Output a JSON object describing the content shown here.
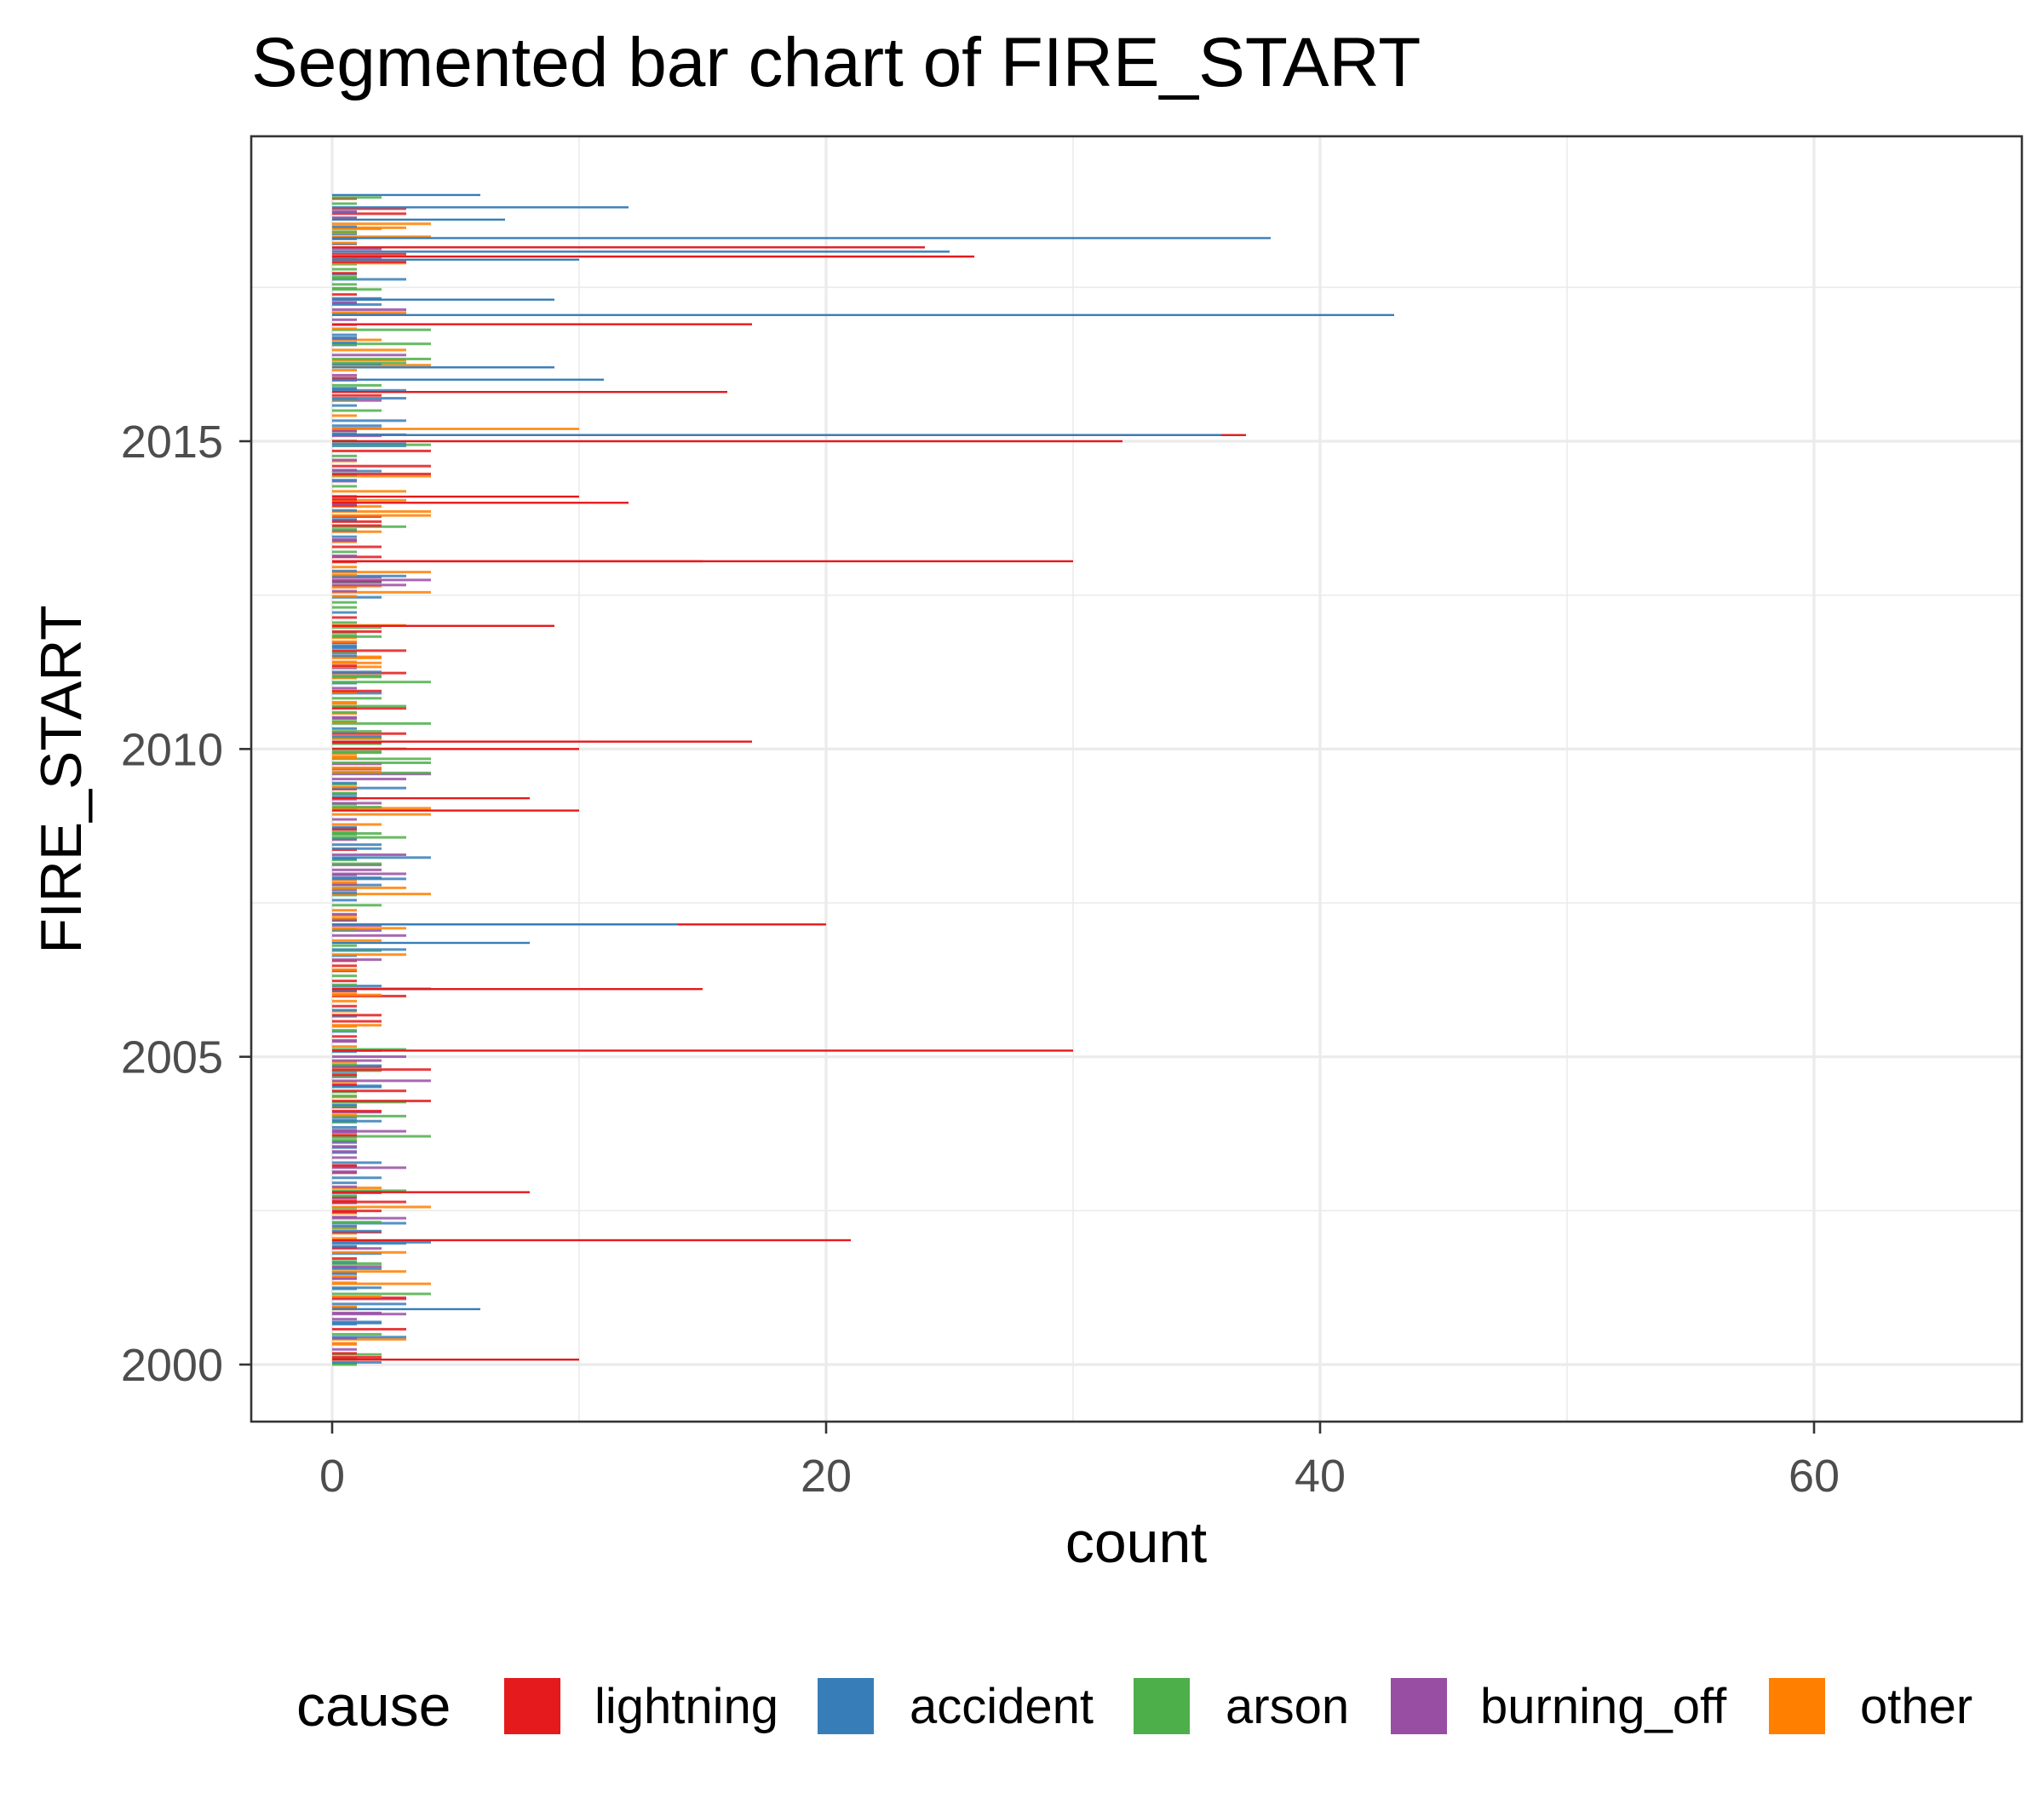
{
  "chart_data": {
    "type": "bar",
    "orientation": "horizontal",
    "title": "Segmented bar chart of FIRE_START",
    "xlabel": "count",
    "ylabel": "FIRE_START",
    "xlim": [
      -3.3,
      68.5
    ],
    "ylim": [
      1999.1,
      2019.9
    ],
    "x_ticks": [
      "0",
      "20",
      "40",
      "60"
    ],
    "x_tick_values": [
      0,
      20,
      40,
      60
    ],
    "y_ticks": [
      "2000",
      "2005",
      "2010",
      "2015"
    ],
    "y_tick_values": [
      2000,
      2005,
      2010,
      2015
    ],
    "grid": true,
    "legend_position": "bottom",
    "legend": {
      "title": "cause",
      "entries": [
        {
          "name": "lightning",
          "color": "#E41A1C"
        },
        {
          "name": "accident",
          "color": "#377EB8"
        },
        {
          "name": "arson",
          "color": "#4DAF4A"
        },
        {
          "name": "burning_off",
          "color": "#984EA3"
        },
        {
          "name": "other",
          "color": "#FF7F00"
        }
      ]
    },
    "notable_bars": [
      {
        "fire_start": 2000.08,
        "cause": "lightning",
        "count": 10
      },
      {
        "fire_start": 2000.9,
        "cause": "accident",
        "count": 6
      },
      {
        "fire_start": 2002.02,
        "cause": "lightning",
        "count": 21
      },
      {
        "fire_start": 2002.8,
        "cause": "lightning",
        "count": 8
      },
      {
        "fire_start": 2005.1,
        "cause": "lightning",
        "count": 30
      },
      {
        "fire_start": 2006.1,
        "cause": "lightning",
        "count": 15
      },
      {
        "fire_start": 2006.85,
        "cause": "accident",
        "count": 8
      },
      {
        "fire_start": 2007.15,
        "cause": "lightning",
        "count": 20
      },
      {
        "fire_start": 2007.15,
        "cause": "accident",
        "count": 14
      },
      {
        "fire_start": 2009.0,
        "cause": "lightning",
        "count": 10
      },
      {
        "fire_start": 2009.2,
        "cause": "lightning",
        "count": 8
      },
      {
        "fire_start": 2010.0,
        "cause": "lightning",
        "count": 10
      },
      {
        "fire_start": 2010.12,
        "cause": "lightning",
        "count": 17
      },
      {
        "fire_start": 2012.0,
        "cause": "lightning",
        "count": 9
      },
      {
        "fire_start": 2013.05,
        "cause": "lightning",
        "count": 30
      },
      {
        "fire_start": 2013.05,
        "cause": "lightning",
        "count": 15
      },
      {
        "fire_start": 2014.0,
        "cause": "lightning",
        "count": 12
      },
      {
        "fire_start": 2014.1,
        "cause": "lightning",
        "count": 10
      },
      {
        "fire_start": 2015.0,
        "cause": "lightning",
        "count": 32
      },
      {
        "fire_start": 2015.1,
        "cause": "lightning",
        "count": 37
      },
      {
        "fire_start": 2015.1,
        "cause": "accident",
        "count": 36
      },
      {
        "fire_start": 2015.2,
        "cause": "other",
        "count": 10
      },
      {
        "fire_start": 2015.8,
        "cause": "lightning",
        "count": 16
      },
      {
        "fire_start": 2016.0,
        "cause": "accident",
        "count": 11
      },
      {
        "fire_start": 2016.2,
        "cause": "accident",
        "count": 9
      },
      {
        "fire_start": 2016.9,
        "cause": "lightning",
        "count": 17
      },
      {
        "fire_start": 2017.05,
        "cause": "accident",
        "count": 43
      },
      {
        "fire_start": 2017.3,
        "cause": "accident",
        "count": 9
      },
      {
        "fire_start": 2017.95,
        "cause": "accident",
        "count": 10
      },
      {
        "fire_start": 2018.0,
        "cause": "lightning",
        "count": 26
      },
      {
        "fire_start": 2018.08,
        "cause": "accident",
        "count": 25
      },
      {
        "fire_start": 2018.15,
        "cause": "lightning",
        "count": 24
      },
      {
        "fire_start": 2018.3,
        "cause": "accident",
        "count": 38
      },
      {
        "fire_start": 2018.6,
        "cause": "accident",
        "count": 7
      },
      {
        "fire_start": 2018.8,
        "cause": "accident",
        "count": 12
      },
      {
        "fire_start": 2019.0,
        "cause": "accident",
        "count": 6
      }
    ]
  }
}
